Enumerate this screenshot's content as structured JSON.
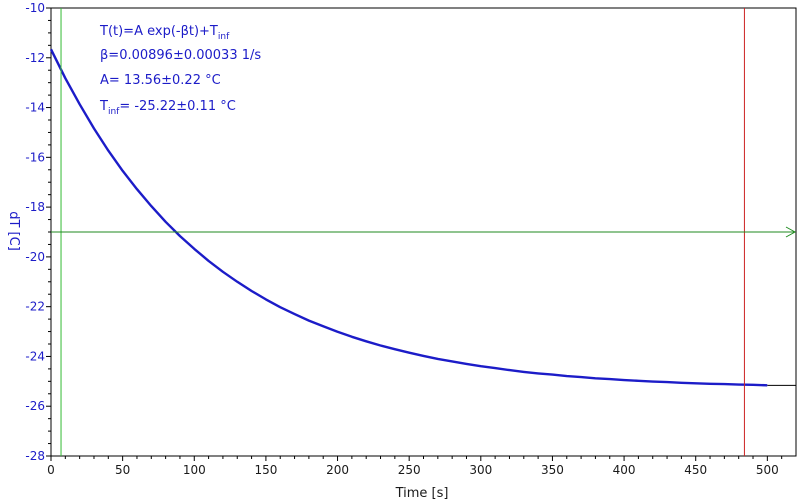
{
  "chart_data": {
    "type": "line",
    "xlabel": "Time [s]",
    "ylabel": "dT [C]",
    "xlim": [
      0,
      520
    ],
    "ylim": [
      -28,
      -10
    ],
    "x_ticks": [
      0,
      50,
      100,
      150,
      200,
      250,
      300,
      350,
      400,
      450,
      500
    ],
    "y_ticks": [
      -10,
      -12,
      -14,
      -16,
      -18,
      -20,
      -22,
      -24,
      -26,
      -28
    ],
    "fit": {
      "model": "T(t)=A exp(-βt)+T",
      "model_sub": "inf",
      "beta_text": "β=0.00896±0.00033 1/s",
      "A_text": "A= 13.56±0.22 °C",
      "tinf_prefix": "T",
      "tinf_sub": "inf",
      "tinf_text": "= -25.22±0.11 °C",
      "A": 13.56,
      "beta": 0.00896,
      "Tinf": -25.22
    },
    "series": [
      {
        "x": [
          0,
          10,
          20,
          30,
          40,
          50,
          60,
          70,
          80,
          90,
          100,
          110,
          120,
          130,
          140,
          150,
          160,
          170,
          180,
          190,
          200,
          210,
          220,
          230,
          240,
          250,
          260,
          270,
          280,
          290,
          300,
          310,
          320,
          330,
          340,
          350,
          360,
          370,
          380,
          390,
          400,
          410,
          420,
          430,
          440,
          450,
          460,
          470,
          480,
          490,
          500
        ],
        "y": [
          -11.66,
          -12.82,
          -13.87,
          -14.84,
          -15.73,
          -16.54,
          -17.28,
          -17.96,
          -18.59,
          -19.16,
          -19.68,
          -20.16,
          -20.6,
          -21.0,
          -21.37,
          -21.71,
          -22.02,
          -22.3,
          -22.56,
          -22.79,
          -23.01,
          -23.21,
          -23.39,
          -23.56,
          -23.71,
          -23.85,
          -23.98,
          -24.1,
          -24.2,
          -24.3,
          -24.39,
          -24.47,
          -24.55,
          -24.62,
          -24.68,
          -24.73,
          -24.79,
          -24.83,
          -24.88,
          -24.91,
          -24.95,
          -24.98,
          -25.01,
          -25.03,
          -25.06,
          -25.08,
          -25.1,
          -25.11,
          -25.13,
          -25.14,
          -25.16
        ],
        "color": "#1c1cc8"
      }
    ],
    "extension": {
      "x": [
        500,
        520
      ],
      "y": [
        -25.16,
        -25.16
      ],
      "color": "#000000"
    },
    "cursors": {
      "vertical_green_x": 7,
      "vertical_red_x": 484,
      "horizontal_y": -19,
      "green_color": "#33bb33",
      "red_color": "#cc2222",
      "hline_color": "#1f8a1f"
    },
    "grid": false
  }
}
